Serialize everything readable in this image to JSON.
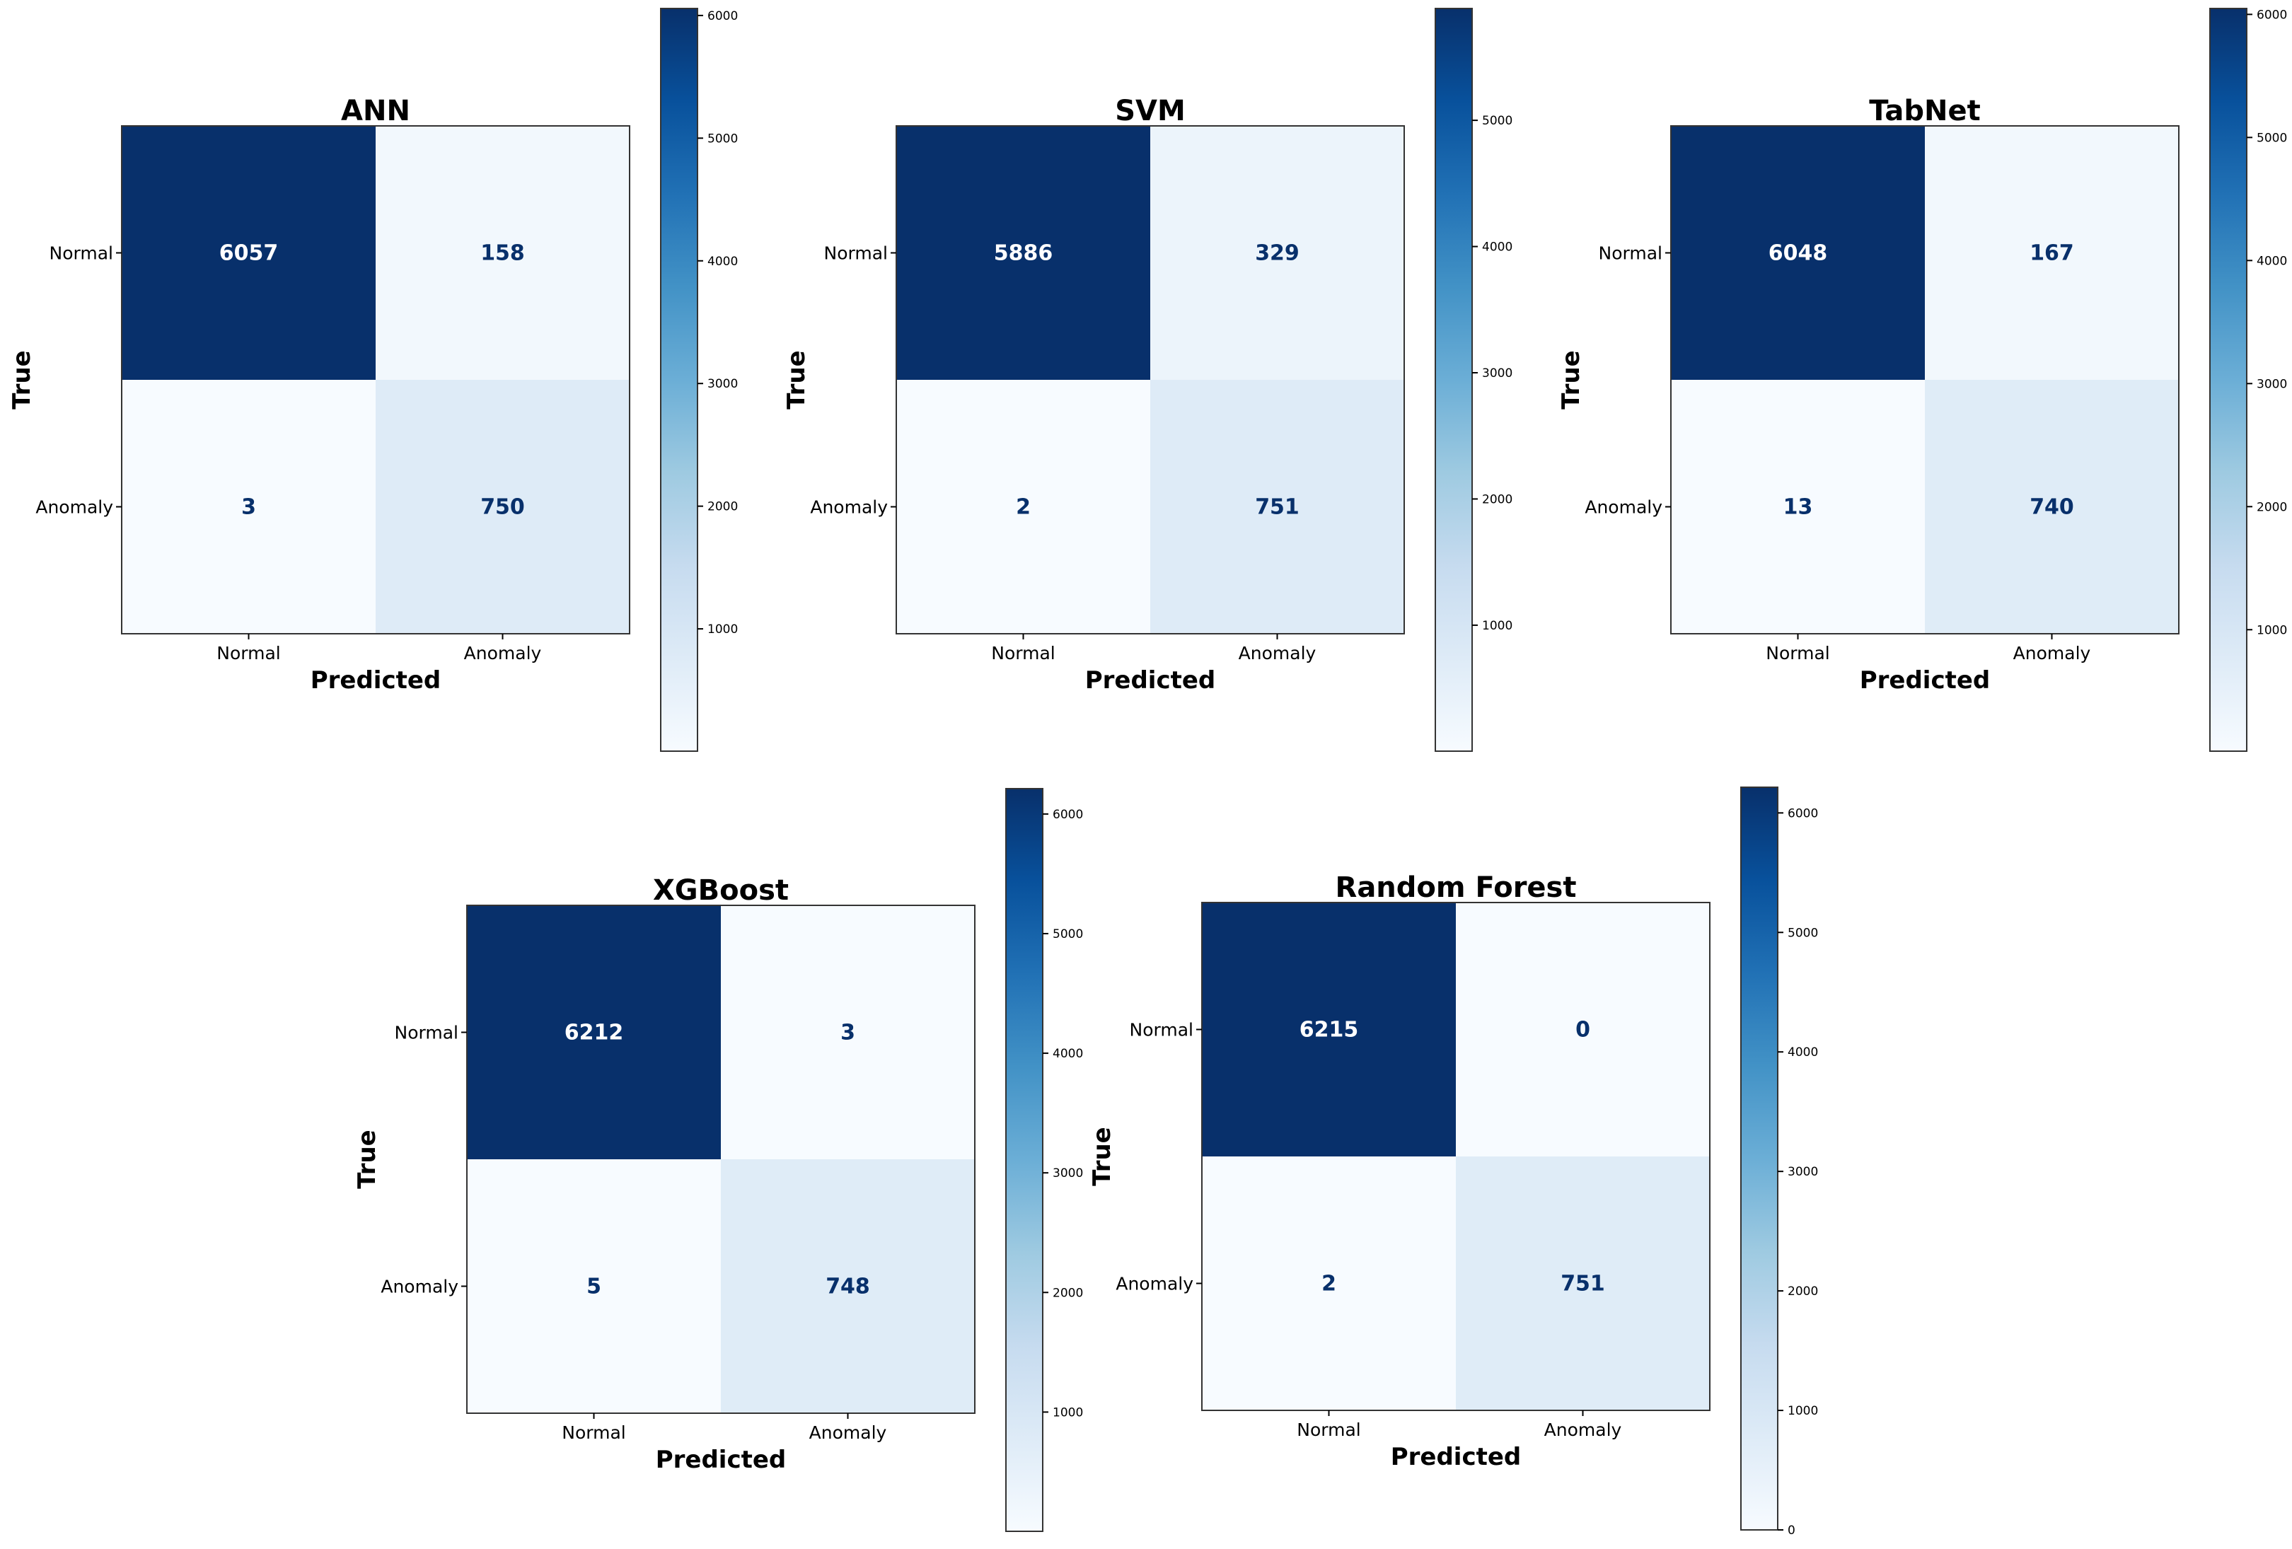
{
  "chart_data": [
    {
      "type": "heatmap",
      "title": "ANN",
      "xlabel": "Predicted",
      "ylabel": "True",
      "x_categories": [
        "Normal",
        "Anomaly"
      ],
      "y_categories": [
        "Normal",
        "Anomaly"
      ],
      "matrix": [
        [
          6057,
          158
        ],
        [
          3,
          750
        ]
      ],
      "colormap": "Blues",
      "colorbar": {
        "range": [
          3,
          6057
        ],
        "ticks": [
          1000,
          2000,
          3000,
          4000,
          5000,
          6000
        ]
      }
    },
    {
      "type": "heatmap",
      "title": "SVM",
      "xlabel": "Predicted",
      "ylabel": "True",
      "x_categories": [
        "Normal",
        "Anomaly"
      ],
      "y_categories": [
        "Normal",
        "Anomaly"
      ],
      "matrix": [
        [
          5886,
          329
        ],
        [
          2,
          751
        ]
      ],
      "colormap": "Blues",
      "colorbar": {
        "range": [
          2,
          5886
        ],
        "ticks": [
          1000,
          2000,
          3000,
          4000,
          5000
        ]
      }
    },
    {
      "type": "heatmap",
      "title": "TabNet",
      "xlabel": "Predicted",
      "ylabel": "True",
      "x_categories": [
        "Normal",
        "Anomaly"
      ],
      "y_categories": [
        "Normal",
        "Anomaly"
      ],
      "matrix": [
        [
          6048,
          167
        ],
        [
          13,
          740
        ]
      ],
      "colormap": "Blues",
      "colorbar": {
        "range": [
          13,
          6048
        ],
        "ticks": [
          1000,
          2000,
          3000,
          4000,
          5000,
          6000
        ]
      }
    },
    {
      "type": "heatmap",
      "title": "XGBoost",
      "xlabel": "Predicted",
      "ylabel": "True",
      "x_categories": [
        "Normal",
        "Anomaly"
      ],
      "y_categories": [
        "Normal",
        "Anomaly"
      ],
      "matrix": [
        [
          6212,
          3
        ],
        [
          5,
          748
        ]
      ],
      "colormap": "Blues",
      "colorbar": {
        "range": [
          3,
          6212
        ],
        "ticks": [
          1000,
          2000,
          3000,
          4000,
          5000,
          6000
        ]
      }
    },
    {
      "type": "heatmap",
      "title": "Random Forest",
      "xlabel": "Predicted",
      "ylabel": "True",
      "x_categories": [
        "Normal",
        "Anomaly"
      ],
      "y_categories": [
        "Normal",
        "Anomaly"
      ],
      "matrix": [
        [
          6215,
          0
        ],
        [
          2,
          751
        ]
      ],
      "colormap": "Blues",
      "colorbar": {
        "range": [
          0,
          6215
        ],
        "ticks": [
          0,
          1000,
          2000,
          3000,
          4000,
          5000,
          6000
        ]
      }
    }
  ],
  "colors": {
    "blues_scale": [
      "#f7fbff",
      "#deebf7",
      "#c6dbef",
      "#9ecae1",
      "#6baed6",
      "#4292c6",
      "#2171b5",
      "#08519c",
      "#08306b"
    ],
    "text_on_dark": "#ffffff",
    "text_on_light": "#08306b",
    "frame": "#333333"
  }
}
